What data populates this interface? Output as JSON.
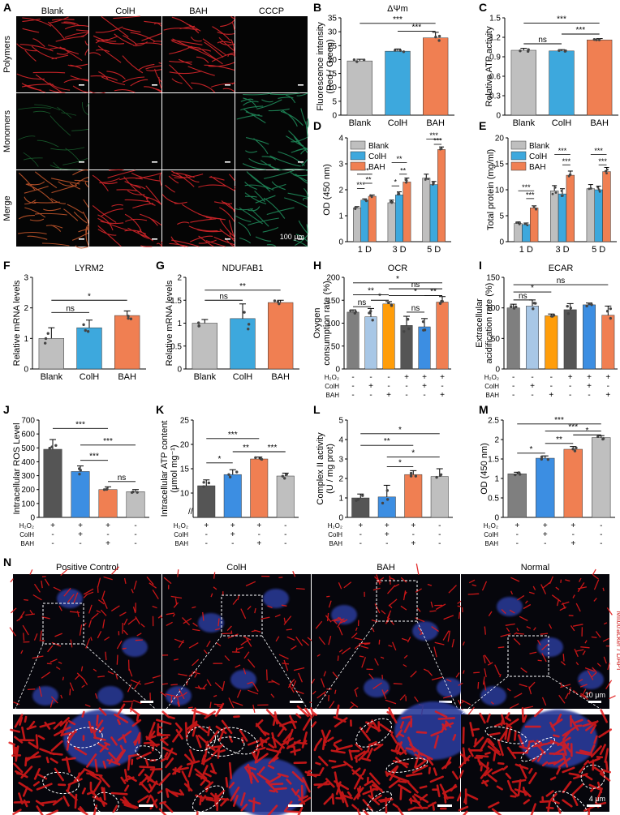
{
  "panels": {
    "A": {
      "letter": "A",
      "cols": [
        "Blank",
        "ColH",
        "BAH",
        "CCCP"
      ],
      "rows": [
        "Polymers",
        "Monomers",
        "Merge"
      ],
      "scale": "100 μm"
    },
    "B": {
      "letter": "B",
      "title": "ΔΨm",
      "ylabel": "Fluorescence intensity\n(Red / Green)",
      "ylim": [
        0,
        35
      ],
      "ticks": [
        0,
        5,
        10,
        15,
        20,
        25,
        30,
        35
      ],
      "categories": [
        "Blank",
        "ColH",
        "BAH"
      ],
      "values": [
        19.5,
        23,
        27.8
      ],
      "err": [
        0.6,
        0.8,
        2.0
      ],
      "colors": [
        "#bfbfbf",
        "#3da8dd",
        "#f07f52"
      ],
      "sig": [
        {
          "a": 0,
          "b": 2,
          "label": "***",
          "y": 33
        },
        {
          "a": 1,
          "b": 2,
          "label": "***",
          "y": 30.2
        }
      ]
    },
    "C": {
      "letter": "C",
      "ylabel": "Relative ATP activity",
      "ylim": [
        0,
        1.5
      ],
      "ticks": [
        0,
        0.3,
        0.6,
        0.9,
        1.2,
        1.5
      ],
      "categories": [
        "Blank",
        "ColH",
        "BAH"
      ],
      "values": [
        1.0,
        0.99,
        1.16
      ],
      "err": [
        0.03,
        0.02,
        0.02
      ],
      "colors": [
        "#bfbfbf",
        "#3da8dd",
        "#f07f52"
      ],
      "sig": [
        {
          "a": 0,
          "b": 2,
          "label": "***",
          "y": 1.42
        },
        {
          "a": 0,
          "b": 1,
          "label": "ns",
          "y": 1.1
        },
        {
          "a": 1,
          "b": 2,
          "label": "***",
          "y": 1.25
        }
      ]
    },
    "D": {
      "letter": "D",
      "ylabel": "OD (450 nm)",
      "ylim": [
        0,
        4
      ],
      "ticks": [
        0,
        1,
        2,
        3,
        4
      ],
      "groups": [
        "1 D",
        "3 D",
        "5 D"
      ],
      "legend": [
        "Blank",
        "ColH",
        "BAH"
      ],
      "colors": [
        "#bfbfbf",
        "#3da8dd",
        "#f07f52"
      ],
      "values": [
        [
          1.3,
          1.6,
          1.75
        ],
        [
          1.5,
          1.8,
          2.3
        ],
        [
          2.45,
          2.2,
          3.55
        ]
      ],
      "err": [
        [
          0.05,
          0.05,
          0.05
        ],
        [
          0.1,
          0.12,
          0.15
        ],
        [
          0.15,
          0.12,
          0.1
        ]
      ],
      "sig": [
        {
          "g": 0,
          "a": 0,
          "b": 2,
          "label": "***",
          "y": 2.6
        },
        {
          "g": 0,
          "a": 0,
          "b": 1,
          "label": "***",
          "y": 2.05
        },
        {
          "g": 0,
          "a": 1,
          "b": 2,
          "label": "**",
          "y": 2.25
        },
        {
          "g": 1,
          "a": 0,
          "b": 2,
          "label": "**",
          "y": 3.05
        },
        {
          "g": 1,
          "a": 0,
          "b": 1,
          "label": "*",
          "y": 2.15
        },
        {
          "g": 1,
          "a": 1,
          "b": 2,
          "label": "**",
          "y": 2.6
        },
        {
          "g": 2,
          "a": 0,
          "b": 2,
          "label": "***",
          "y": 3.95
        },
        {
          "g": 2,
          "a": 1,
          "b": 2,
          "label": "***",
          "y": 3.75
        }
      ]
    },
    "E": {
      "letter": "E",
      "ylabel": "Total protein (mg/ml)",
      "ylim": [
        0,
        20
      ],
      "ticks": [
        0,
        5,
        10,
        15,
        20
      ],
      "groups": [
        "1 D",
        "3 D",
        "5 D"
      ],
      "legend": [
        "Blank",
        "ColH",
        "BAH"
      ],
      "colors": [
        "#bfbfbf",
        "#3da8dd",
        "#f07f52"
      ],
      "values": [
        [
          3.5,
          3.3,
          6.5
        ],
        [
          9.8,
          9.2,
          12.8
        ],
        [
          10.2,
          10.0,
          13.5
        ]
      ],
      "err": [
        [
          0.3,
          0.3,
          0.4
        ],
        [
          1.0,
          1.0,
          0.8
        ],
        [
          0.8,
          0.7,
          0.8
        ]
      ],
      "sig": [
        {
          "g": 0,
          "a": 0,
          "b": 2,
          "label": "***",
          "y": 9.8
        },
        {
          "g": 0,
          "a": 1,
          "b": 2,
          "label": "***",
          "y": 8.3
        },
        {
          "g": 1,
          "a": 0,
          "b": 2,
          "label": "***",
          "y": 16.8
        },
        {
          "g": 1,
          "a": 1,
          "b": 2,
          "label": "***",
          "y": 14.8
        },
        {
          "g": 2,
          "a": 0,
          "b": 2,
          "label": "***",
          "y": 16.8
        },
        {
          "g": 2,
          "a": 1,
          "b": 2,
          "label": "***",
          "y": 14.8
        }
      ]
    },
    "F": {
      "letter": "F",
      "title": "LYRM2",
      "ylabel": "Relative mRNA levels",
      "ylim": [
        0,
        3
      ],
      "ticks": [
        0,
        1,
        2,
        3
      ],
      "categories": [
        "Blank",
        "ColH",
        "BAH"
      ],
      "values": [
        1.0,
        1.35,
        1.75
      ],
      "err": [
        0.35,
        0.25,
        0.15
      ],
      "colors": [
        "#bfbfbf",
        "#3da8dd",
        "#f07f52"
      ],
      "sig": [
        {
          "a": 0,
          "b": 2,
          "label": "*",
          "y": 2.25
        },
        {
          "a": 0,
          "b": 1,
          "label": "ns",
          "y": 1.85
        }
      ]
    },
    "G": {
      "letter": "G",
      "title": "NDUFAB1",
      "ylabel": "Relative mRNA levels",
      "ylim": [
        0,
        2.0
      ],
      "ticks": [
        0,
        0.5,
        1.0,
        1.5,
        2.0
      ],
      "categories": [
        "Blank",
        "ColH",
        "BAH"
      ],
      "values": [
        1.0,
        1.1,
        1.45
      ],
      "err": [
        0.08,
        0.32,
        0.05
      ],
      "colors": [
        "#bfbfbf",
        "#3da8dd",
        "#f07f52"
      ],
      "sig": [
        {
          "a": 0,
          "b": 2,
          "label": "**",
          "y": 1.72
        },
        {
          "a": 0,
          "b": 1,
          "label": "ns",
          "y": 1.5
        }
      ]
    },
    "H": {
      "letter": "H",
      "title": "OCR",
      "ylabel": "Oxygen\nconsumption rate (%)",
      "ylim": [
        0,
        200
      ],
      "ticks": [
        0,
        50,
        100,
        150,
        200
      ],
      "values": [
        124,
        114,
        142,
        95,
        92,
        146
      ],
      "err": [
        5,
        18,
        5,
        20,
        18,
        12
      ],
      "colors": [
        "#7f7f7f",
        "#a8c7e6",
        "#ff9d0a",
        "#555555",
        "#3c8ee2",
        "#f07f52"
      ],
      "sig": [
        {
          "a": 0,
          "b": 5,
          "label": "*",
          "y": 188
        },
        {
          "a": 2,
          "b": 5,
          "label": "ns",
          "y": 175
        },
        {
          "a": 0,
          "b": 2,
          "label": "**",
          "y": 162
        },
        {
          "a": 2,
          "b": 5,
          "label": "*",
          "y": 160
        },
        {
          "a": 1,
          "b": 2,
          "label": "*",
          "y": 150
        },
        {
          "a": 0,
          "b": 1,
          "label": "ns",
          "y": 136
        },
        {
          "a": 4,
          "b": 5,
          "label": "**",
          "y": 160
        },
        {
          "a": 3,
          "b": 4,
          "label": "ns",
          "y": 124
        }
      ]
    },
    "I": {
      "letter": "I",
      "title": "ECAR",
      "ylabel": "Extracellular\nacidification rate (%)",
      "ylim": [
        0,
        150
      ],
      "ticks": [
        0,
        50,
        100,
        150
      ],
      "values": [
        100,
        103,
        87,
        97,
        105,
        88
      ],
      "err": [
        6,
        10,
        3,
        10,
        3,
        15
      ],
      "colors": [
        "#7f7f7f",
        "#a8c7e6",
        "#ff9d0a",
        "#555555",
        "#3c8ee2",
        "#f07f52"
      ],
      "sig": [
        {
          "a": 0,
          "b": 5,
          "label": "ns",
          "y": 138
        },
        {
          "a": 0,
          "b": 2,
          "label": "*",
          "y": 126
        },
        {
          "a": 0,
          "b": 1,
          "label": "ns",
          "y": 113
        }
      ]
    },
    "J": {
      "letter": "J",
      "ylabel": "Intracellular ROS Level",
      "ylim": [
        0,
        700
      ],
      "ticks": [
        0,
        100,
        200,
        300,
        400,
        500,
        600,
        700
      ],
      "values": [
        490,
        330,
        200,
        185
      ],
      "err": [
        70,
        40,
        20,
        15
      ],
      "colors": [
        "#555555",
        "#3c8ee2",
        "#f07f52",
        "#bfbfbf"
      ],
      "sig": [
        {
          "a": 0,
          "b": 2,
          "label": "***",
          "y": 640
        },
        {
          "a": 1,
          "b": 3,
          "label": "***",
          "y": 520
        },
        {
          "a": 1,
          "b": 2,
          "label": "***",
          "y": 410
        },
        {
          "a": 2,
          "b": 3,
          "label": "ns",
          "y": 258
        }
      ]
    },
    "K": {
      "letter": "K",
      "ylabel": "Intracellular ATP content\n(μmol mg⁻¹)",
      "ylim": [
        5,
        25
      ],
      "ticks": [
        10,
        15,
        20,
        25
      ],
      "values": [
        11.5,
        13.8,
        17.0,
        13.5
      ],
      "err": [
        1.2,
        1.0,
        0.4,
        0.6
      ],
      "colors": [
        "#555555",
        "#3c8ee2",
        "#f07f52",
        "#bfbfbf"
      ],
      "sig": [
        {
          "a": 0,
          "b": 2,
          "label": "***",
          "y": 21.2
        },
        {
          "a": 0,
          "b": 1,
          "label": "*",
          "y": 16.2
        },
        {
          "a": 1,
          "b": 2,
          "label": "**",
          "y": 18.5
        },
        {
          "a": 2,
          "b": 3,
          "label": "***",
          "y": 18.5
        }
      ]
    },
    "L": {
      "letter": "L",
      "ylabel": "Complex II activity\n(U / mg prot)",
      "ylim": [
        0,
        5
      ],
      "ticks": [
        0,
        1,
        2,
        3,
        4,
        5
      ],
      "values": [
        1.0,
        1.05,
        2.2,
        2.1
      ],
      "err": [
        0.2,
        0.6,
        0.2,
        0.4
      ],
      "colors": [
        "#555555",
        "#3c8ee2",
        "#f07f52",
        "#bfbfbf"
      ],
      "sig": [
        {
          "a": 0,
          "b": 3,
          "label": "*",
          "y": 4.3
        },
        {
          "a": 0,
          "b": 2,
          "label": "**",
          "y": 3.7
        },
        {
          "a": 1,
          "b": 3,
          "label": "*",
          "y": 3.1
        },
        {
          "a": 1,
          "b": 2,
          "label": "*",
          "y": 2.6
        }
      ]
    },
    "M": {
      "letter": "M",
      "ylabel": "OD (450 nm)",
      "ylim": [
        0,
        2.5
      ],
      "ticks": [
        0,
        0.5,
        1.0,
        1.5,
        2.0,
        2.5
      ],
      "values": [
        1.12,
        1.52,
        1.75,
        2.05
      ],
      "err": [
        0.04,
        0.06,
        0.07,
        0.05
      ],
      "colors": [
        "#7f7f7f",
        "#3c8ee2",
        "#f07f52",
        "#bfbfbf"
      ],
      "sig": [
        {
          "a": 0,
          "b": 3,
          "label": "***",
          "y": 2.4
        },
        {
          "a": 1,
          "b": 3,
          "label": "***",
          "y": 2.22
        },
        {
          "a": 2,
          "b": 3,
          "label": "*",
          "y": 2.12
        },
        {
          "a": 1,
          "b": 2,
          "label": "**",
          "y": 1.9
        },
        {
          "a": 0,
          "b": 1,
          "label": "*",
          "y": 1.65
        }
      ]
    },
    "N": {
      "letter": "N",
      "cols": [
        "Positive Control",
        "ColH",
        "BAH",
        "Normal"
      ],
      "side": "Mitotracker / DAPI",
      "scale_top": "10 μm",
      "scale_bottom": "4 μm"
    }
  },
  "treat": {
    "labels": [
      "H₂O₂",
      "ColH",
      "BAH"
    ],
    "six": [
      [
        "-",
        "-",
        "-",
        "+",
        "+",
        "+"
      ],
      [
        "-",
        "+",
        "-",
        "-",
        "+",
        "-"
      ],
      [
        "-",
        "-",
        "+",
        "-",
        "-",
        "+"
      ]
    ],
    "four": [
      [
        "+",
        "+",
        "+",
        "-"
      ],
      [
        "-",
        "+",
        "-",
        "-"
      ],
      [
        "-",
        "-",
        "+",
        "-"
      ]
    ]
  },
  "chart_data": [
    {
      "type": "bar",
      "title": "ΔΨm",
      "categories": [
        "Blank",
        "ColH",
        "BAH"
      ],
      "values": [
        19.5,
        23,
        27.8
      ],
      "ylabel": "Fluorescence intensity (Red / Green)",
      "ylim": [
        0,
        35
      ]
    },
    {
      "type": "bar",
      "categories": [
        "Blank",
        "ColH",
        "BAH"
      ],
      "values": [
        1.0,
        0.99,
        1.16
      ],
      "ylabel": "Relative ATP activity",
      "ylim": [
        0,
        1.5
      ]
    },
    {
      "type": "bar",
      "categories": [
        "1 D",
        "3 D",
        "5 D"
      ],
      "series": [
        {
          "name": "Blank",
          "values": [
            1.3,
            1.5,
            2.45
          ]
        },
        {
          "name": "ColH",
          "values": [
            1.6,
            1.8,
            2.2
          ]
        },
        {
          "name": "BAH",
          "values": [
            1.75,
            2.3,
            3.55
          ]
        }
      ],
      "ylabel": "OD (450 nm)",
      "ylim": [
        0,
        4
      ]
    },
    {
      "type": "bar",
      "categories": [
        "1 D",
        "3 D",
        "5 D"
      ],
      "series": [
        {
          "name": "Blank",
          "values": [
            3.5,
            9.8,
            10.2
          ]
        },
        {
          "name": "ColH",
          "values": [
            3.3,
            9.2,
            10.0
          ]
        },
        {
          "name": "BAH",
          "values": [
            6.5,
            12.8,
            13.5
          ]
        }
      ],
      "ylabel": "Total protein (mg/ml)",
      "ylim": [
        0,
        20
      ]
    },
    {
      "type": "bar",
      "title": "LYRM2",
      "categories": [
        "Blank",
        "ColH",
        "BAH"
      ],
      "values": [
        1.0,
        1.35,
        1.75
      ],
      "ylabel": "Relative mRNA levels",
      "ylim": [
        0,
        3
      ]
    },
    {
      "type": "bar",
      "title": "NDUFAB1",
      "categories": [
        "Blank",
        "ColH",
        "BAH"
      ],
      "values": [
        1.0,
        1.1,
        1.45
      ],
      "ylabel": "Relative mRNA levels",
      "ylim": [
        0,
        2
      ]
    },
    {
      "type": "bar",
      "title": "OCR",
      "values": [
        124,
        114,
        142,
        95,
        92,
        146
      ],
      "ylabel": "Oxygen consumption rate (%)",
      "ylim": [
        0,
        200
      ]
    },
    {
      "type": "bar",
      "title": "ECAR",
      "values": [
        100,
        103,
        87,
        97,
        105,
        88
      ],
      "ylabel": "Extracellular acidification rate (%)",
      "ylim": [
        0,
        150
      ]
    },
    {
      "type": "bar",
      "values": [
        490,
        330,
        200,
        185
      ],
      "ylabel": "Intracellular ROS Level",
      "ylim": [
        0,
        700
      ]
    },
    {
      "type": "bar",
      "values": [
        11.5,
        13.8,
        17.0,
        13.5
      ],
      "ylabel": "Intracellular ATP content (μmol mg⁻¹)",
      "ylim": [
        5,
        25
      ]
    },
    {
      "type": "bar",
      "values": [
        1.0,
        1.05,
        2.2,
        2.1
      ],
      "ylabel": "Complex II activity (U / mg prot)",
      "ylim": [
        0,
        5
      ]
    },
    {
      "type": "bar",
      "values": [
        1.12,
        1.52,
        1.75,
        2.05
      ],
      "ylabel": "OD (450 nm)",
      "ylim": [
        0,
        2.5
      ]
    }
  ]
}
